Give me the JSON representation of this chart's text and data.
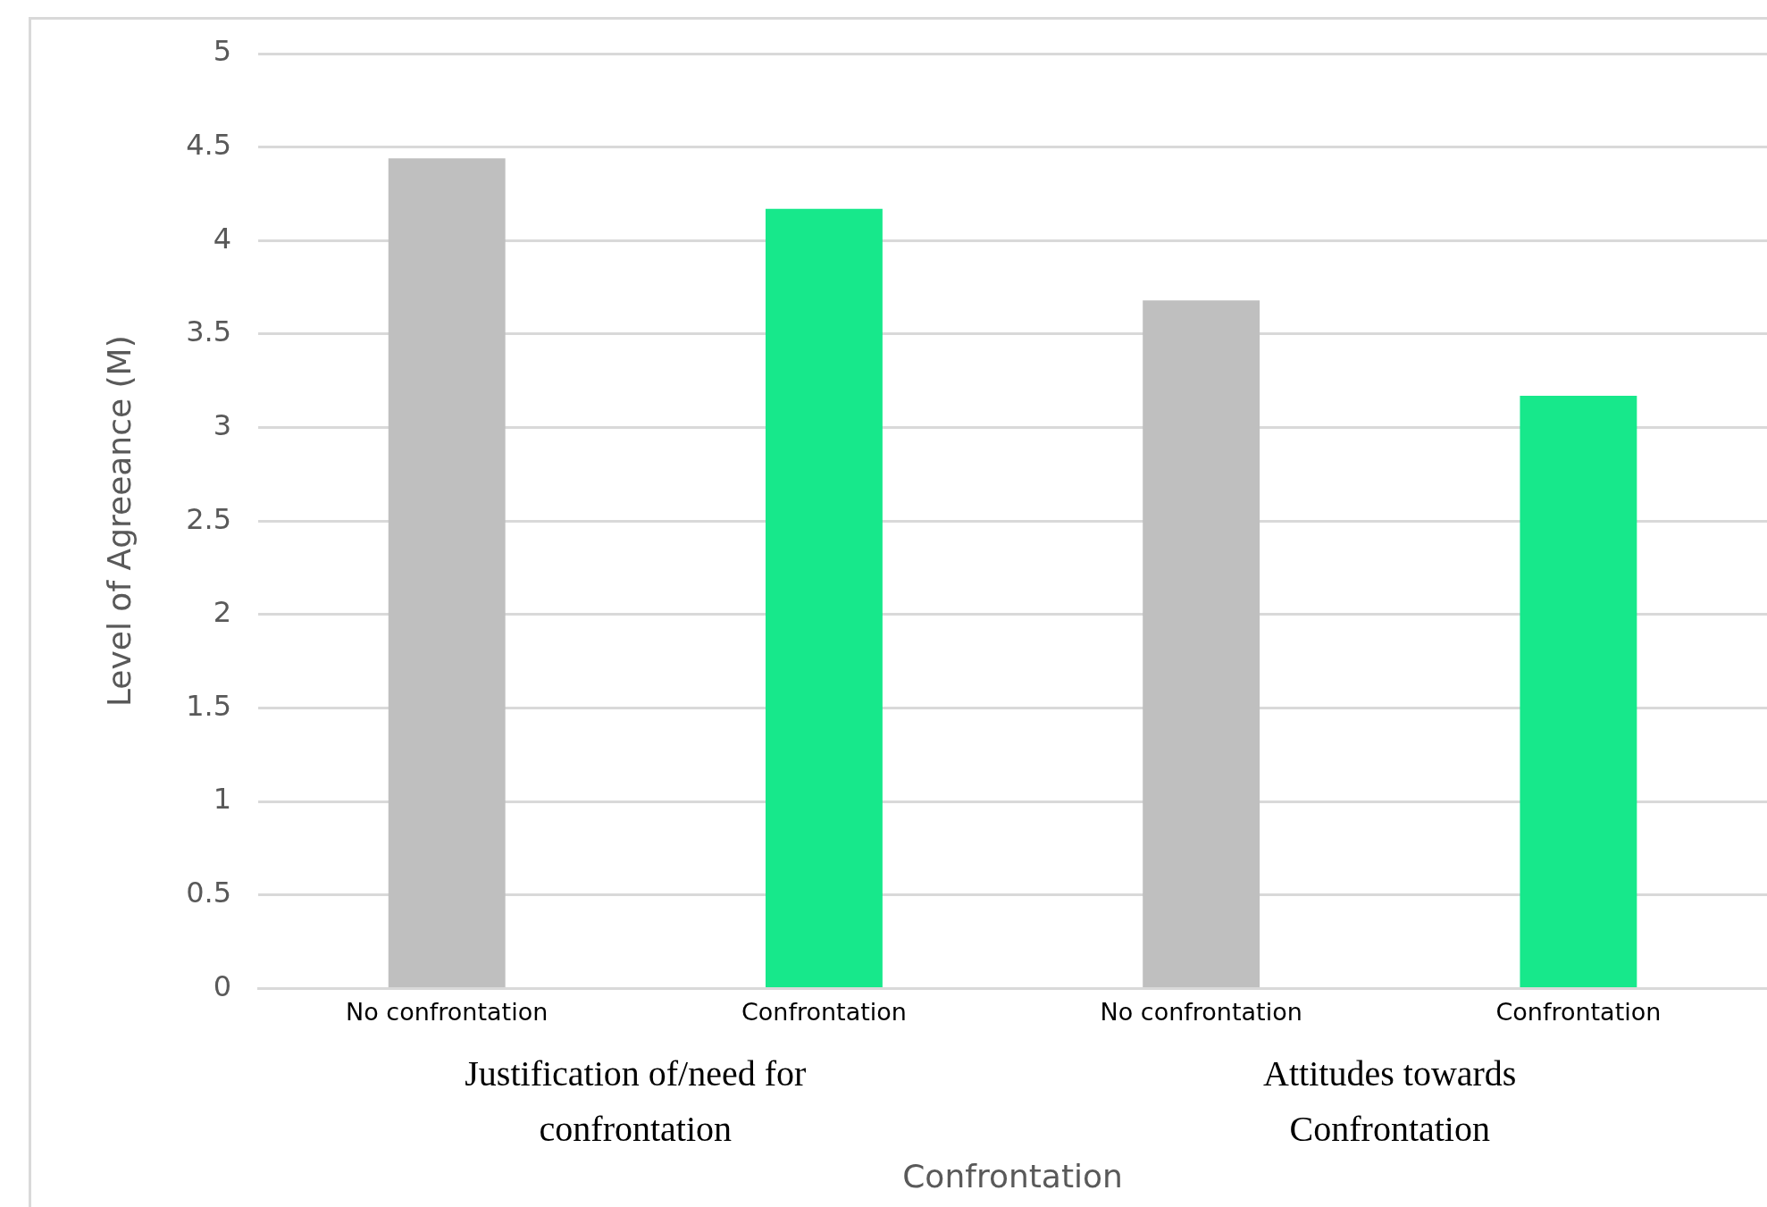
{
  "chart_data": {
    "type": "bar",
    "xlabel": "Confrontation",
    "ylabel": "Level of Agreeance (M)",
    "categories": [
      "No confrontation",
      "Confrontation",
      "No confrontation",
      "Confrontation"
    ],
    "values": [
      4.44,
      4.17,
      3.68,
      3.17
    ],
    "colors": [
      "#bfbfbf",
      "#17e88b",
      "#bfbfbf",
      "#17e88b"
    ],
    "ylim": [
      0,
      5
    ],
    "yticks": [
      0,
      0.5,
      1,
      1.5,
      2,
      2.5,
      3,
      3.5,
      4,
      4.5,
      5
    ],
    "grid": "y",
    "legend": false,
    "annotations": [
      "Justification of/need for confrontation",
      "Attitudes towards Confrontation"
    ]
  }
}
